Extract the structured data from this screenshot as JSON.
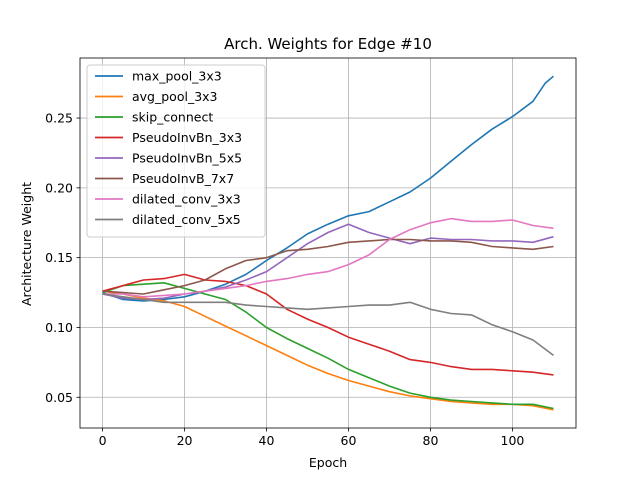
{
  "chart_data": {
    "type": "line",
    "title": "Arch. Weights for Edge #10",
    "xlabel": "Epoch",
    "ylabel": "Architecture Weight",
    "xlim": [
      -5.5,
      115.5
    ],
    "ylim": [
      0.028,
      0.293
    ],
    "xticks": [
      0,
      20,
      40,
      60,
      80,
      100
    ],
    "yticks": [
      0.05,
      0.1,
      0.15,
      0.2,
      0.25
    ],
    "ytick_labels": [
      "0.05",
      "0.10",
      "0.15",
      "0.20",
      "0.25"
    ],
    "grid": true,
    "legend_position": "upper-left",
    "series": [
      {
        "name": "max_pool_3x3",
        "color": "#1f77b4",
        "x": [
          0,
          5,
          10,
          15,
          20,
          25,
          30,
          35,
          40,
          45,
          50,
          55,
          60,
          65,
          70,
          75,
          80,
          85,
          90,
          95,
          100,
          105,
          108,
          110
        ],
        "y": [
          0.125,
          0.12,
          0.119,
          0.12,
          0.122,
          0.126,
          0.131,
          0.138,
          0.148,
          0.157,
          0.167,
          0.174,
          0.18,
          0.183,
          0.19,
          0.197,
          0.207,
          0.219,
          0.231,
          0.242,
          0.251,
          0.262,
          0.275,
          0.28
        ]
      },
      {
        "name": "avg_pool_3x3",
        "color": "#ff7f0e",
        "x": [
          0,
          5,
          10,
          15,
          20,
          25,
          30,
          35,
          40,
          45,
          50,
          55,
          60,
          65,
          70,
          75,
          80,
          85,
          90,
          95,
          100,
          105,
          110
        ],
        "y": [
          0.126,
          0.124,
          0.121,
          0.119,
          0.115,
          0.108,
          0.101,
          0.094,
          0.087,
          0.08,
          0.073,
          0.067,
          0.062,
          0.058,
          0.054,
          0.051,
          0.049,
          0.047,
          0.046,
          0.045,
          0.045,
          0.044,
          0.041
        ]
      },
      {
        "name": "skip_connect",
        "color": "#2ca02c",
        "x": [
          0,
          5,
          10,
          15,
          20,
          25,
          30,
          35,
          40,
          45,
          50,
          55,
          60,
          65,
          70,
          75,
          80,
          85,
          90,
          95,
          100,
          105,
          110
        ],
        "y": [
          0.125,
          0.13,
          0.131,
          0.132,
          0.128,
          0.124,
          0.12,
          0.111,
          0.1,
          0.092,
          0.085,
          0.078,
          0.07,
          0.064,
          0.058,
          0.053,
          0.05,
          0.048,
          0.047,
          0.046,
          0.045,
          0.045,
          0.042
        ]
      },
      {
        "name": "PseudoInvBn_3x3",
        "color": "#d62728",
        "x": [
          0,
          5,
          10,
          15,
          20,
          25,
          30,
          35,
          40,
          45,
          50,
          55,
          60,
          65,
          70,
          75,
          80,
          85,
          90,
          95,
          100,
          105,
          110
        ],
        "y": [
          0.126,
          0.13,
          0.134,
          0.135,
          0.138,
          0.134,
          0.133,
          0.13,
          0.124,
          0.113,
          0.106,
          0.1,
          0.093,
          0.088,
          0.083,
          0.077,
          0.075,
          0.072,
          0.07,
          0.07,
          0.069,
          0.068,
          0.066
        ]
      },
      {
        "name": "PseudoInvBn_5x5",
        "color": "#9467bd",
        "x": [
          0,
          5,
          10,
          15,
          20,
          25,
          30,
          35,
          40,
          45,
          50,
          55,
          60,
          65,
          70,
          75,
          80,
          85,
          90,
          95,
          100,
          105,
          110
        ],
        "y": [
          0.124,
          0.121,
          0.12,
          0.121,
          0.124,
          0.126,
          0.129,
          0.134,
          0.14,
          0.15,
          0.16,
          0.168,
          0.174,
          0.168,
          0.164,
          0.16,
          0.164,
          0.163,
          0.163,
          0.162,
          0.162,
          0.161,
          0.165
        ]
      },
      {
        "name": "PseudoInvB_7x7",
        "color": "#8c564b",
        "x": [
          0,
          5,
          10,
          15,
          20,
          25,
          30,
          35,
          40,
          45,
          50,
          55,
          60,
          65,
          70,
          75,
          80,
          85,
          90,
          95,
          100,
          105,
          110
        ],
        "y": [
          0.126,
          0.125,
          0.124,
          0.127,
          0.13,
          0.134,
          0.142,
          0.148,
          0.15,
          0.155,
          0.156,
          0.158,
          0.161,
          0.162,
          0.163,
          0.163,
          0.162,
          0.162,
          0.161,
          0.158,
          0.157,
          0.156,
          0.158
        ]
      },
      {
        "name": "dilated_conv_3x3",
        "color": "#e377c2",
        "x": [
          0,
          5,
          10,
          15,
          20,
          25,
          30,
          35,
          40,
          45,
          50,
          55,
          60,
          65,
          70,
          75,
          80,
          85,
          90,
          95,
          100,
          105,
          110
        ],
        "y": [
          0.124,
          0.124,
          0.122,
          0.123,
          0.124,
          0.126,
          0.128,
          0.13,
          0.133,
          0.135,
          0.138,
          0.14,
          0.145,
          0.152,
          0.163,
          0.17,
          0.175,
          0.178,
          0.176,
          0.176,
          0.177,
          0.173,
          0.171
        ]
      },
      {
        "name": "dilated_conv_5x5",
        "color": "#7f7f7f",
        "x": [
          0,
          5,
          10,
          15,
          20,
          25,
          30,
          35,
          40,
          45,
          50,
          55,
          60,
          65,
          70,
          75,
          80,
          85,
          90,
          95,
          100,
          105,
          110
        ],
        "y": [
          0.124,
          0.122,
          0.12,
          0.118,
          0.118,
          0.118,
          0.118,
          0.116,
          0.115,
          0.114,
          0.113,
          0.114,
          0.115,
          0.116,
          0.116,
          0.118,
          0.113,
          0.11,
          0.109,
          0.102,
          0.097,
          0.091,
          0.08
        ]
      }
    ]
  }
}
